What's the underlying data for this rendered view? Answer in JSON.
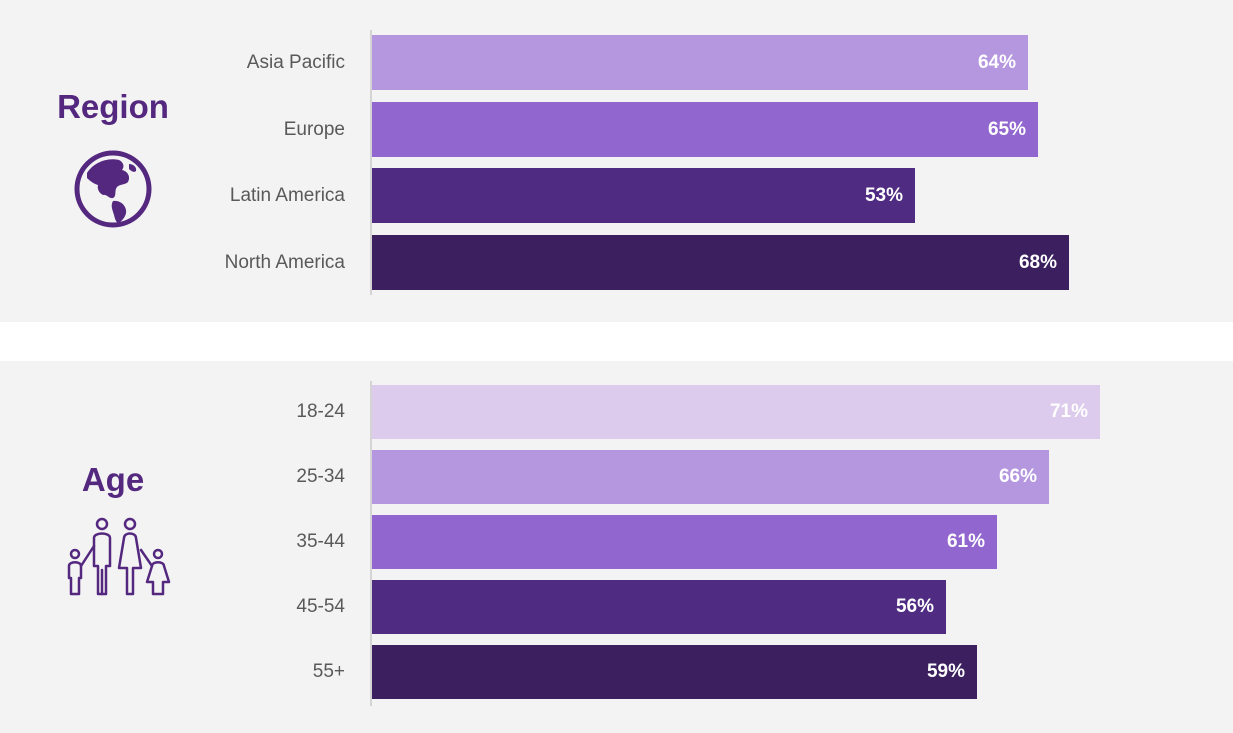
{
  "chart_data": [
    {
      "type": "bar",
      "orientation": "horizontal",
      "title": "Region",
      "icon": "globe-icon",
      "categories": [
        "Asia Pacific",
        "Europe",
        "Latin America",
        "North America"
      ],
      "values": [
        64,
        65,
        53,
        68
      ],
      "value_labels": [
        "64%",
        "65%",
        "53%",
        "68%"
      ],
      "colors": [
        "#b597e0",
        "#9166cf",
        "#4f2b82",
        "#3b1f5f"
      ],
      "xlim": [
        0,
        100
      ],
      "grid": false
    },
    {
      "type": "bar",
      "orientation": "horizontal",
      "title": "Age",
      "icon": "family-icon",
      "categories": [
        "18-24",
        "25-34",
        "35-44",
        "45-54",
        "55+"
      ],
      "values": [
        71,
        66,
        61,
        56,
        59
      ],
      "value_labels": [
        "71%",
        "66%",
        "61%",
        "56%",
        "59%"
      ],
      "colors": [
        "#dccbec",
        "#b597e0",
        "#9166cf",
        "#4f2b82",
        "#3b1f5f"
      ],
      "xlim": [
        0,
        100
      ],
      "grid": false
    }
  ],
  "theme": {
    "accent": "#54287f",
    "label_color": "#595959",
    "panel_bg": "#f3f3f4"
  }
}
